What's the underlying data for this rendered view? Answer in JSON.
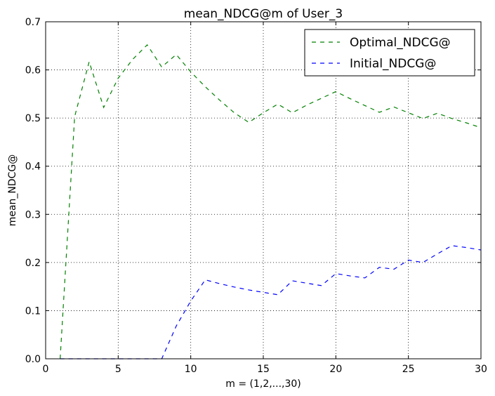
{
  "chart_data": {
    "type": "line",
    "title": "mean_NDCG@m of User_3",
    "xlabel": "m = (1,2,...,30)",
    "ylabel": "mean_NDCG@",
    "xlim": [
      0,
      30
    ],
    "ylim": [
      0,
      0.7
    ],
    "xticks": [
      "0",
      "5",
      "10",
      "15",
      "20",
      "25",
      "30"
    ],
    "yticks": [
      "0.0",
      "0.1",
      "0.2",
      "0.3",
      "0.4",
      "0.5",
      "0.6",
      "0.7"
    ],
    "grid": true,
    "legend_position": "top-right",
    "x": [
      1,
      2,
      3,
      4,
      5,
      6,
      7,
      8,
      9,
      10,
      11,
      12,
      13,
      14,
      15,
      16,
      17,
      18,
      19,
      20,
      21,
      22,
      23,
      24,
      25,
      26,
      27,
      28,
      29,
      30
    ],
    "series": [
      {
        "name": "Optimal_NDCG@",
        "color": "#008000",
        "style": "dashed",
        "values": [
          0.0,
          0.503,
          0.617,
          0.522,
          0.583,
          0.622,
          0.652,
          0.606,
          0.632,
          0.596,
          0.565,
          0.537,
          0.511,
          0.491,
          0.511,
          0.529,
          0.511,
          0.527,
          0.541,
          0.555,
          0.54,
          0.526,
          0.512,
          0.523,
          0.511,
          0.499,
          0.51,
          0.499,
          0.49,
          0.48
        ]
      },
      {
        "name": "Initial_NDCG@",
        "color": "#0000ff",
        "style": "dashed",
        "values": [
          0.0,
          0.0,
          0.0,
          0.0,
          0.0,
          0.0,
          0.0,
          0.0,
          0.068,
          0.12,
          0.164,
          0.156,
          0.149,
          0.143,
          0.138,
          0.133,
          0.162,
          0.157,
          0.152,
          0.177,
          0.172,
          0.168,
          0.19,
          0.186,
          0.205,
          0.2,
          0.218,
          0.235,
          0.231,
          0.226
        ]
      }
    ]
  }
}
